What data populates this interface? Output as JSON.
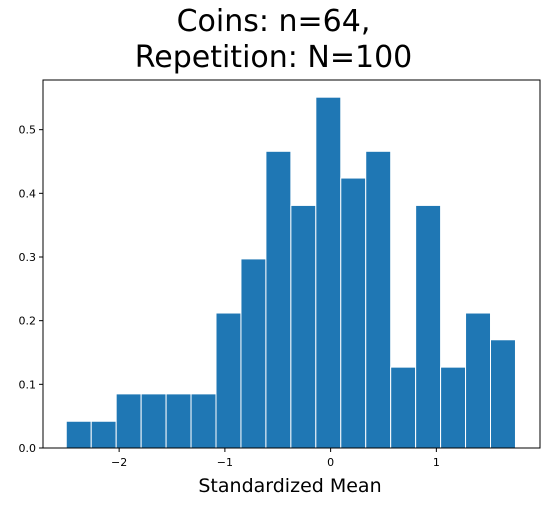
{
  "chart_data": {
    "type": "bar",
    "title_lines": [
      "Coins: n=64,",
      "Repetition: N=100"
    ],
    "xlabel": "Standardized Mean",
    "ylabel": "",
    "xlim": [
      -2.72,
      1.98
    ],
    "ylim": [
      0,
      0.578
    ],
    "grid": false,
    "bar_color": "#1f77b4",
    "bar_edge_color": "#ffffff",
    "bin_edges": [
      -2.5,
      -2.264,
      -2.028,
      -1.792,
      -1.556,
      -1.32,
      -1.084,
      -0.848,
      -0.612,
      -0.376,
      -0.14,
      0.096,
      0.332,
      0.568,
      0.804,
      1.04,
      1.276,
      1.512,
      1.748
    ],
    "values": [
      0.042,
      0.042,
      0.085,
      0.085,
      0.085,
      0.085,
      0.212,
      0.297,
      0.466,
      0.381,
      0.551,
      0.424,
      0.466,
      0.127,
      0.381,
      0.127,
      0.212,
      0.17
    ],
    "xticks": [
      {
        "value": -2,
        "label": "−2"
      },
      {
        "value": -1,
        "label": "−1"
      },
      {
        "value": 0,
        "label": "0"
      },
      {
        "value": 1,
        "label": "1"
      }
    ],
    "yticks": [
      {
        "value": 0.0,
        "label": "0.0"
      },
      {
        "value": 0.1,
        "label": "0.1"
      },
      {
        "value": 0.2,
        "label": "0.2"
      },
      {
        "value": 0.3,
        "label": "0.3"
      },
      {
        "value": 0.4,
        "label": "0.4"
      },
      {
        "value": 0.5,
        "label": "0.5"
      }
    ]
  }
}
